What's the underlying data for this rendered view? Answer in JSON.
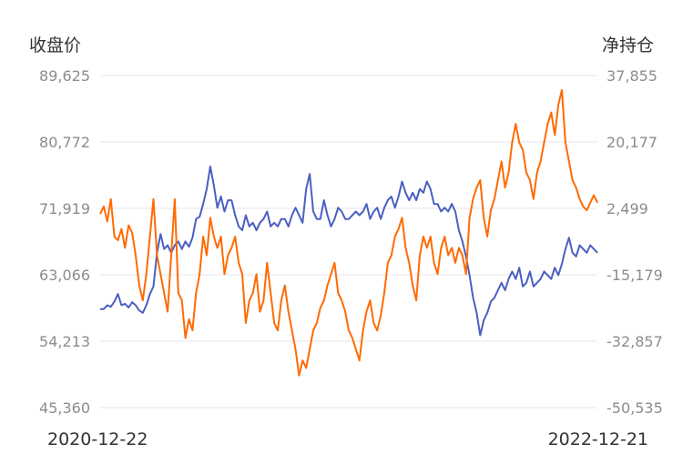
{
  "chart_data": {
    "type": "line",
    "x_start": "2020-12-22",
    "x_end": "2022-12-21",
    "x_tick_labels": [
      "2020-12-22",
      "2022-12-21"
    ],
    "left_axis": {
      "title": "收盘价",
      "ticks": [
        "89,625",
        "80,772",
        "71,919",
        "63,066",
        "54,213",
        "45,360"
      ],
      "range": [
        45360,
        89625
      ]
    },
    "right_axis": {
      "title": "净持仓",
      "ticks": [
        "37,855",
        "20,177",
        "2,499",
        "-15,179",
        "-32,857",
        "-50,535"
      ],
      "range": [
        -50535,
        37855
      ]
    },
    "grid": true,
    "series": [
      {
        "axis": "left",
        "color": "#4a5fc1",
        "values": [
          58500,
          58500,
          59000,
          58800,
          59500,
          60500,
          59000,
          59200,
          58700,
          59400,
          59000,
          58300,
          58000,
          59000,
          60500,
          61500,
          66000,
          68500,
          66500,
          67000,
          66000,
          67000,
          67500,
          66500,
          67500,
          66800,
          68000,
          70500,
          70800,
          72500,
          74500,
          77500,
          75000,
          72000,
          73500,
          71500,
          73000,
          73000,
          71000,
          69500,
          69000,
          71000,
          69500,
          70000,
          69000,
          70000,
          70500,
          71500,
          69500,
          70000,
          69500,
          70500,
          70500,
          69500,
          71000,
          72000,
          71000,
          70000,
          74500,
          76500,
          71500,
          70500,
          70500,
          73000,
          71000,
          69500,
          70500,
          72000,
          71500,
          70500,
          70500,
          71000,
          71500,
          71000,
          71500,
          72500,
          70500,
          71500,
          72000,
          70500,
          72000,
          73000,
          73500,
          72000,
          73500,
          75500,
          74000,
          73000,
          74000,
          73000,
          74500,
          74000,
          75500,
          74500,
          72500,
          72500,
          71500,
          72000,
          71500,
          72500,
          71500,
          69000,
          67500,
          65500,
          63000,
          60000,
          58000,
          55000,
          57000,
          58000,
          59500,
          60000,
          61000,
          62000,
          61000,
          62500,
          63500,
          62500,
          64000,
          61500,
          62000,
          63500,
          61500,
          62000,
          62500,
          63500,
          63000,
          62500,
          64000,
          63000,
          64500,
          66500,
          68000,
          66000,
          65500,
          67000,
          66500,
          66000,
          67000,
          66500,
          66000
        ],
        "net_position_note": ""
      },
      {
        "axis": "right",
        "color": "#ff6a00",
        "values": [
          1000,
          3000,
          -1000,
          5000,
          -5000,
          -6000,
          -3000,
          -8000,
          -2000,
          -4000,
          -10000,
          -18000,
          -22000,
          -15000,
          -5000,
          5000,
          -10000,
          -15000,
          -20000,
          -25000,
          -10000,
          5000,
          -20000,
          -22000,
          -32000,
          -27000,
          -30000,
          -20000,
          -15000,
          -5000,
          -10000,
          0,
          -5000,
          -8000,
          -5000,
          -15000,
          -10000,
          -8000,
          -5000,
          -12000,
          -15000,
          -28000,
          -22000,
          -20000,
          -15000,
          -25000,
          -22000,
          -12000,
          -20000,
          -28000,
          -30000,
          -22000,
          -18000,
          -25000,
          -30000,
          -35000,
          -42000,
          -38000,
          -40000,
          -35000,
          -30000,
          -28000,
          -24000,
          -22000,
          -18000,
          -15000,
          -12000,
          -20000,
          -22000,
          -25000,
          -30000,
          -32000,
          -35000,
          -38000,
          -30000,
          -25000,
          -22000,
          -28000,
          -30000,
          -26000,
          -20000,
          -12000,
          -10000,
          -5000,
          -3000,
          0,
          -8000,
          -12000,
          -18000,
          -22000,
          -10000,
          -5000,
          -8000,
          -5000,
          -12000,
          -15000,
          -8000,
          -5000,
          -10000,
          -8000,
          -12000,
          -8000,
          -10000,
          -15000,
          0,
          5000,
          8000,
          10000,
          0,
          -5000,
          2000,
          5000,
          10000,
          15000,
          8000,
          12000,
          20000,
          25000,
          20000,
          18000,
          12000,
          10000,
          5000,
          12000,
          15000,
          20000,
          25000,
          28000,
          22000,
          30000,
          34000,
          20000,
          15000,
          10000,
          8000,
          5000,
          3000,
          2000,
          4000,
          6000,
          4000
        ]
      }
    ]
  }
}
